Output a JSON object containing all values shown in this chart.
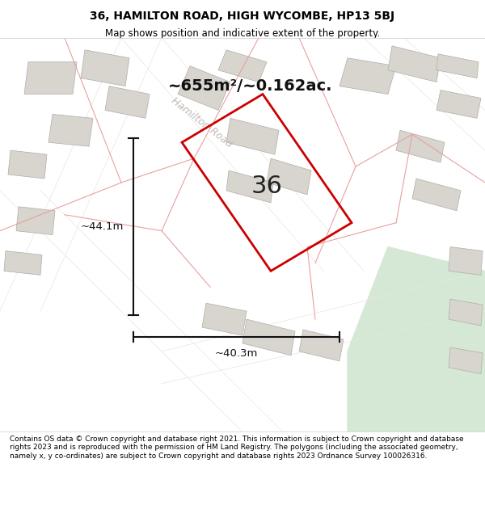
{
  "title_line1": "36, HAMILTON ROAD, HIGH WYCOMBE, HP13 5BJ",
  "title_line2": "Map shows position and indicative extent of the property.",
  "area_text": "~655m²/~0.162ac.",
  "label_36": "36",
  "dim_height": "~44.1m",
  "dim_width": "~40.3m",
  "road_label": "Hamilton Road",
  "footer_text": "Contains OS data © Crown copyright and database right 2021. This information is subject to Crown copyright and database rights 2023 and is reproduced with the permission of HM Land Registry. The polygons (including the associated geometry, namely x, y co-ordinates) are subject to Crown copyright and database rights 2023 Ordnance Survey 100026316.",
  "bg_color": "#f0eeec",
  "map_bg": "#f0eeec",
  "plot_outline_color": "#cc0000",
  "dim_line_color": "#111111",
  "road_color": "#ffffff",
  "building_color": "#d8d5d0",
  "building_outline": "#a0a0a0",
  "road_line_color": "#e8e0d8",
  "green_area_color": "#d8e8d8",
  "street_line_color": "#e0d8d0"
}
